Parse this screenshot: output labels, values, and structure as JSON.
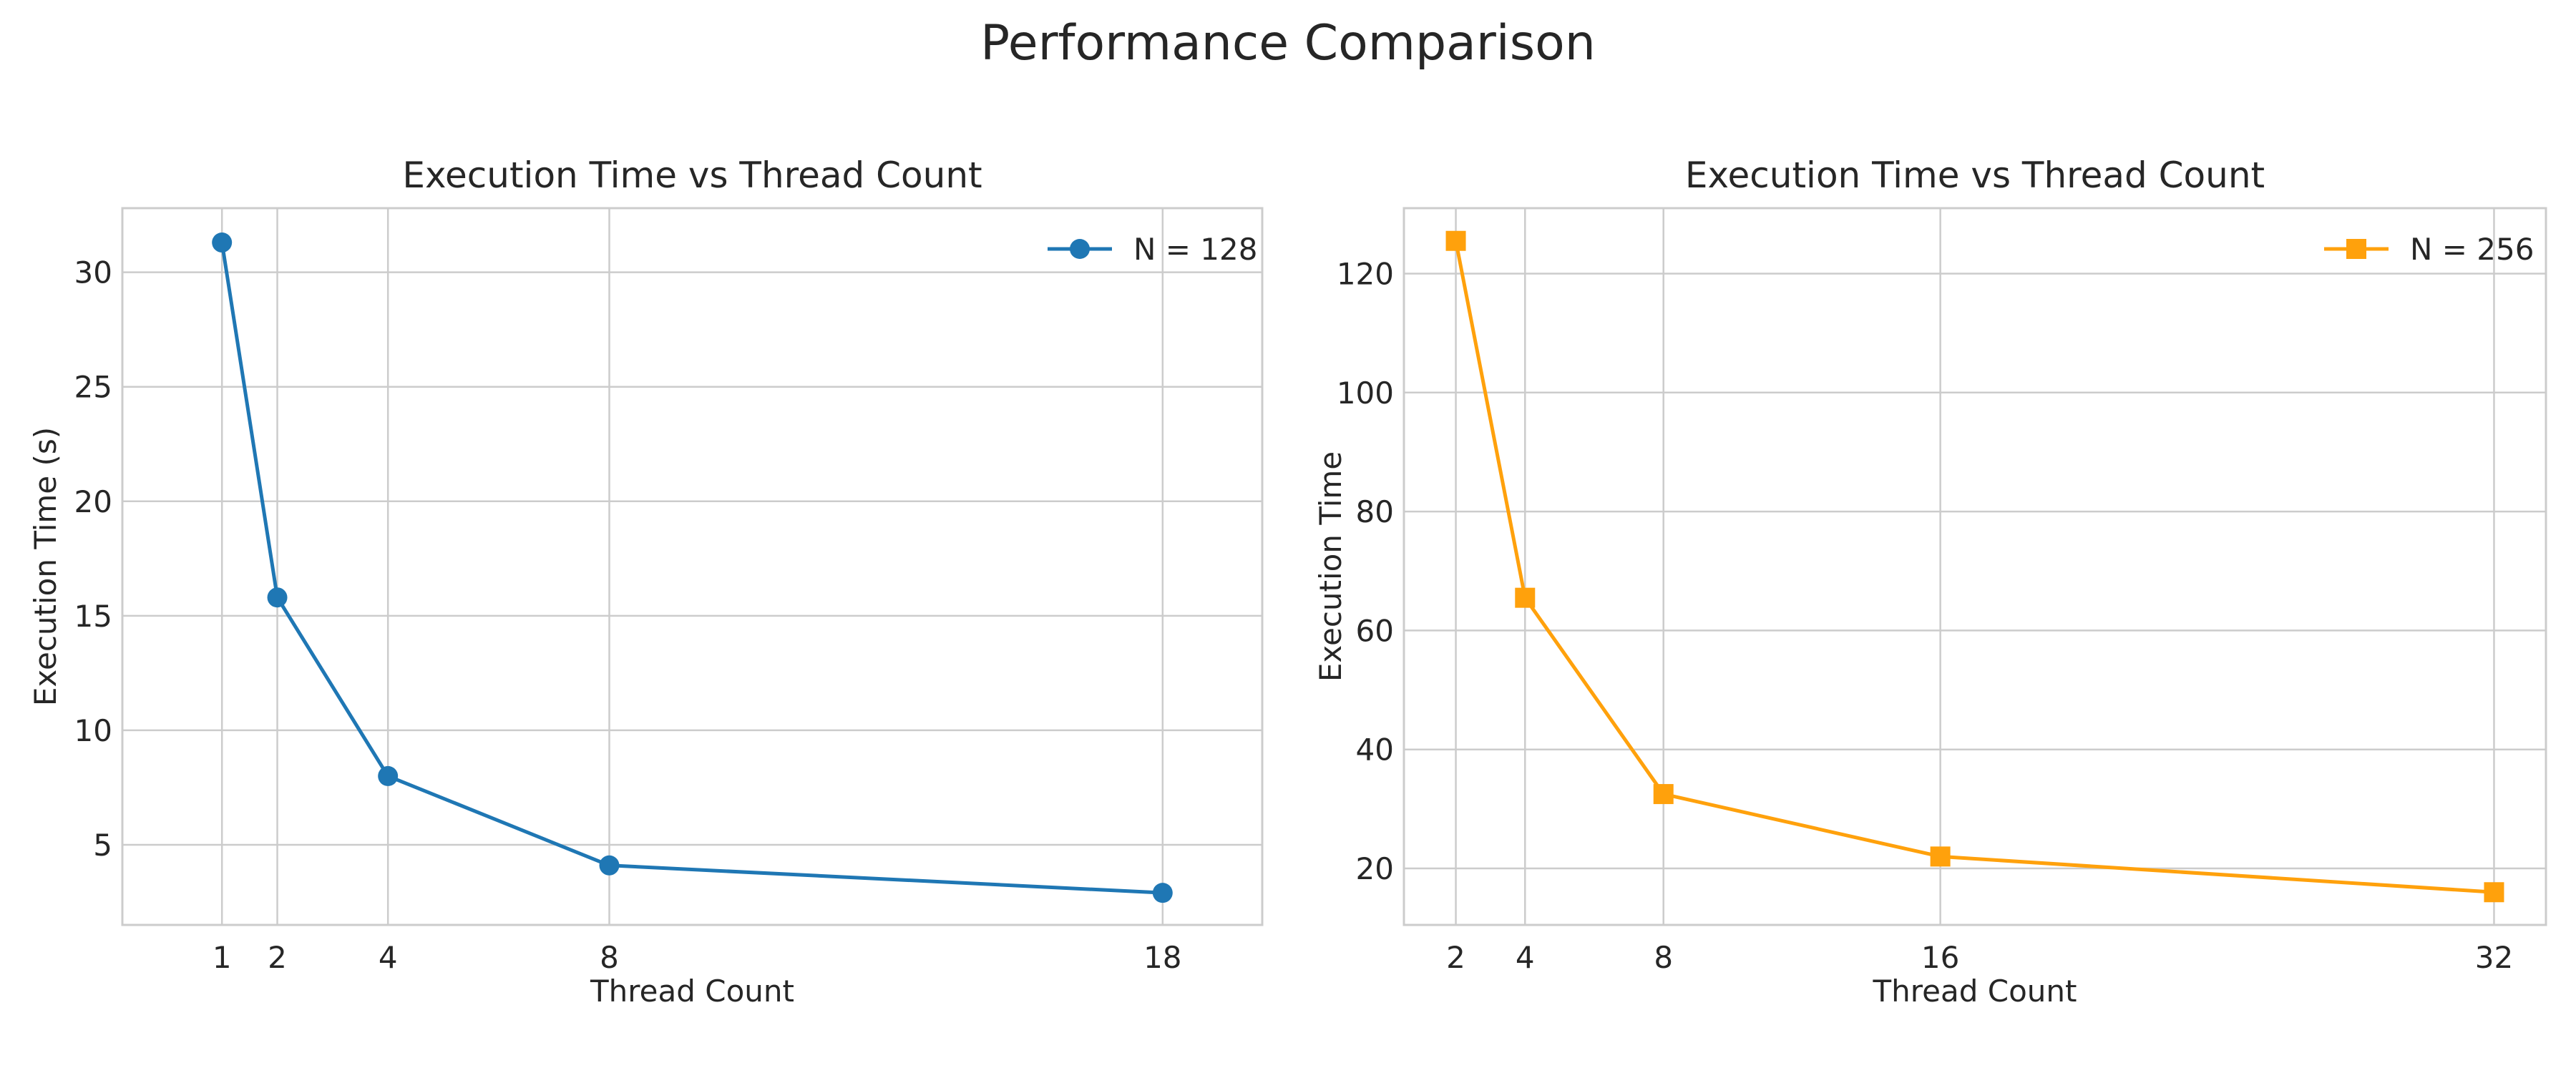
{
  "figure": {
    "title": "Performance Comparison"
  },
  "chart_data": [
    {
      "type": "line",
      "title": "Execution Time vs Thread Count",
      "xlabel": "Thread Count",
      "ylabel": "Execution Time (s)",
      "x": [
        1,
        2,
        4,
        8,
        18
      ],
      "xticks": [
        1,
        2,
        4,
        8,
        18
      ],
      "yticks": [
        5,
        10,
        15,
        20,
        25,
        30
      ],
      "xlim": [
        -0.8,
        19.8
      ],
      "ylim": [
        1.5,
        32.8
      ],
      "grid": true,
      "legend_position": "top-right",
      "series": [
        {
          "name": "N = 128",
          "values": [
            31.3,
            15.8,
            8.0,
            4.1,
            2.9
          ],
          "color": "#1f77b4",
          "marker": "circle"
        }
      ]
    },
    {
      "type": "line",
      "title": "Execution Time vs Thread Count",
      "xlabel": "Thread Count",
      "ylabel": "Execution Time",
      "x": [
        2,
        4,
        8,
        16,
        32
      ],
      "xticks": [
        2,
        4,
        8,
        16,
        32
      ],
      "yticks": [
        20,
        40,
        60,
        80,
        100,
        120
      ],
      "xlim": [
        0.5,
        33.5
      ],
      "ylim": [
        10.5,
        131.0
      ],
      "grid": true,
      "legend_position": "top-right",
      "series": [
        {
          "name": "N = 256",
          "values": [
            125.5,
            65.5,
            32.5,
            22.0,
            16.0
          ],
          "color": "#ffa10c",
          "marker": "square"
        }
      ]
    }
  ]
}
